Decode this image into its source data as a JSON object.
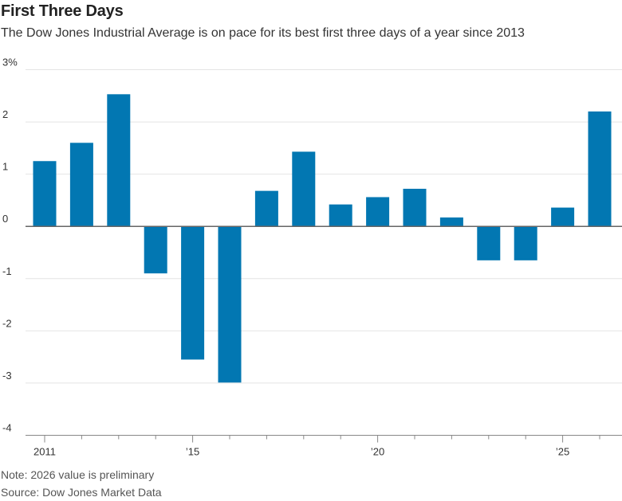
{
  "title": "First Three Days",
  "subtitle": "The Dow Jones Industrial Average is on pace for its best first three days of a year since 2013",
  "note": "Note: 2026 value is preliminary",
  "source": "Source: Dow Jones Market Data",
  "chart_data": {
    "type": "bar",
    "categories": [
      "2011",
      "2012",
      "2013",
      "2014",
      "2015",
      "2016",
      "2017",
      "2018",
      "2019",
      "2020",
      "2021",
      "2022",
      "2023",
      "2024",
      "2025",
      "2026"
    ],
    "values": [
      1.25,
      1.6,
      2.53,
      -0.9,
      -2.55,
      -2.99,
      0.68,
      1.43,
      0.42,
      0.56,
      0.72,
      0.17,
      -0.65,
      -0.65,
      0.36,
      2.2
    ],
    "ylim": [
      -4,
      3
    ],
    "yticks": [
      {
        "value": 3,
        "label": "3%"
      },
      {
        "value": 2,
        "label": "2"
      },
      {
        "value": 1,
        "label": "1"
      },
      {
        "value": 0,
        "label": "0"
      },
      {
        "value": -1,
        "label": "-1"
      },
      {
        "value": -2,
        "label": "-2"
      },
      {
        "value": -3,
        "label": "-3"
      },
      {
        "value": -4,
        "label": "-4"
      }
    ],
    "xticks": [
      {
        "category": "2011",
        "label": "2011"
      },
      {
        "category": "2015",
        "label": "’15"
      },
      {
        "category": "2020",
        "label": "’20"
      },
      {
        "category": "2025",
        "label": "’25"
      }
    ],
    "grid": true,
    "bar_color": "#0277B2"
  }
}
